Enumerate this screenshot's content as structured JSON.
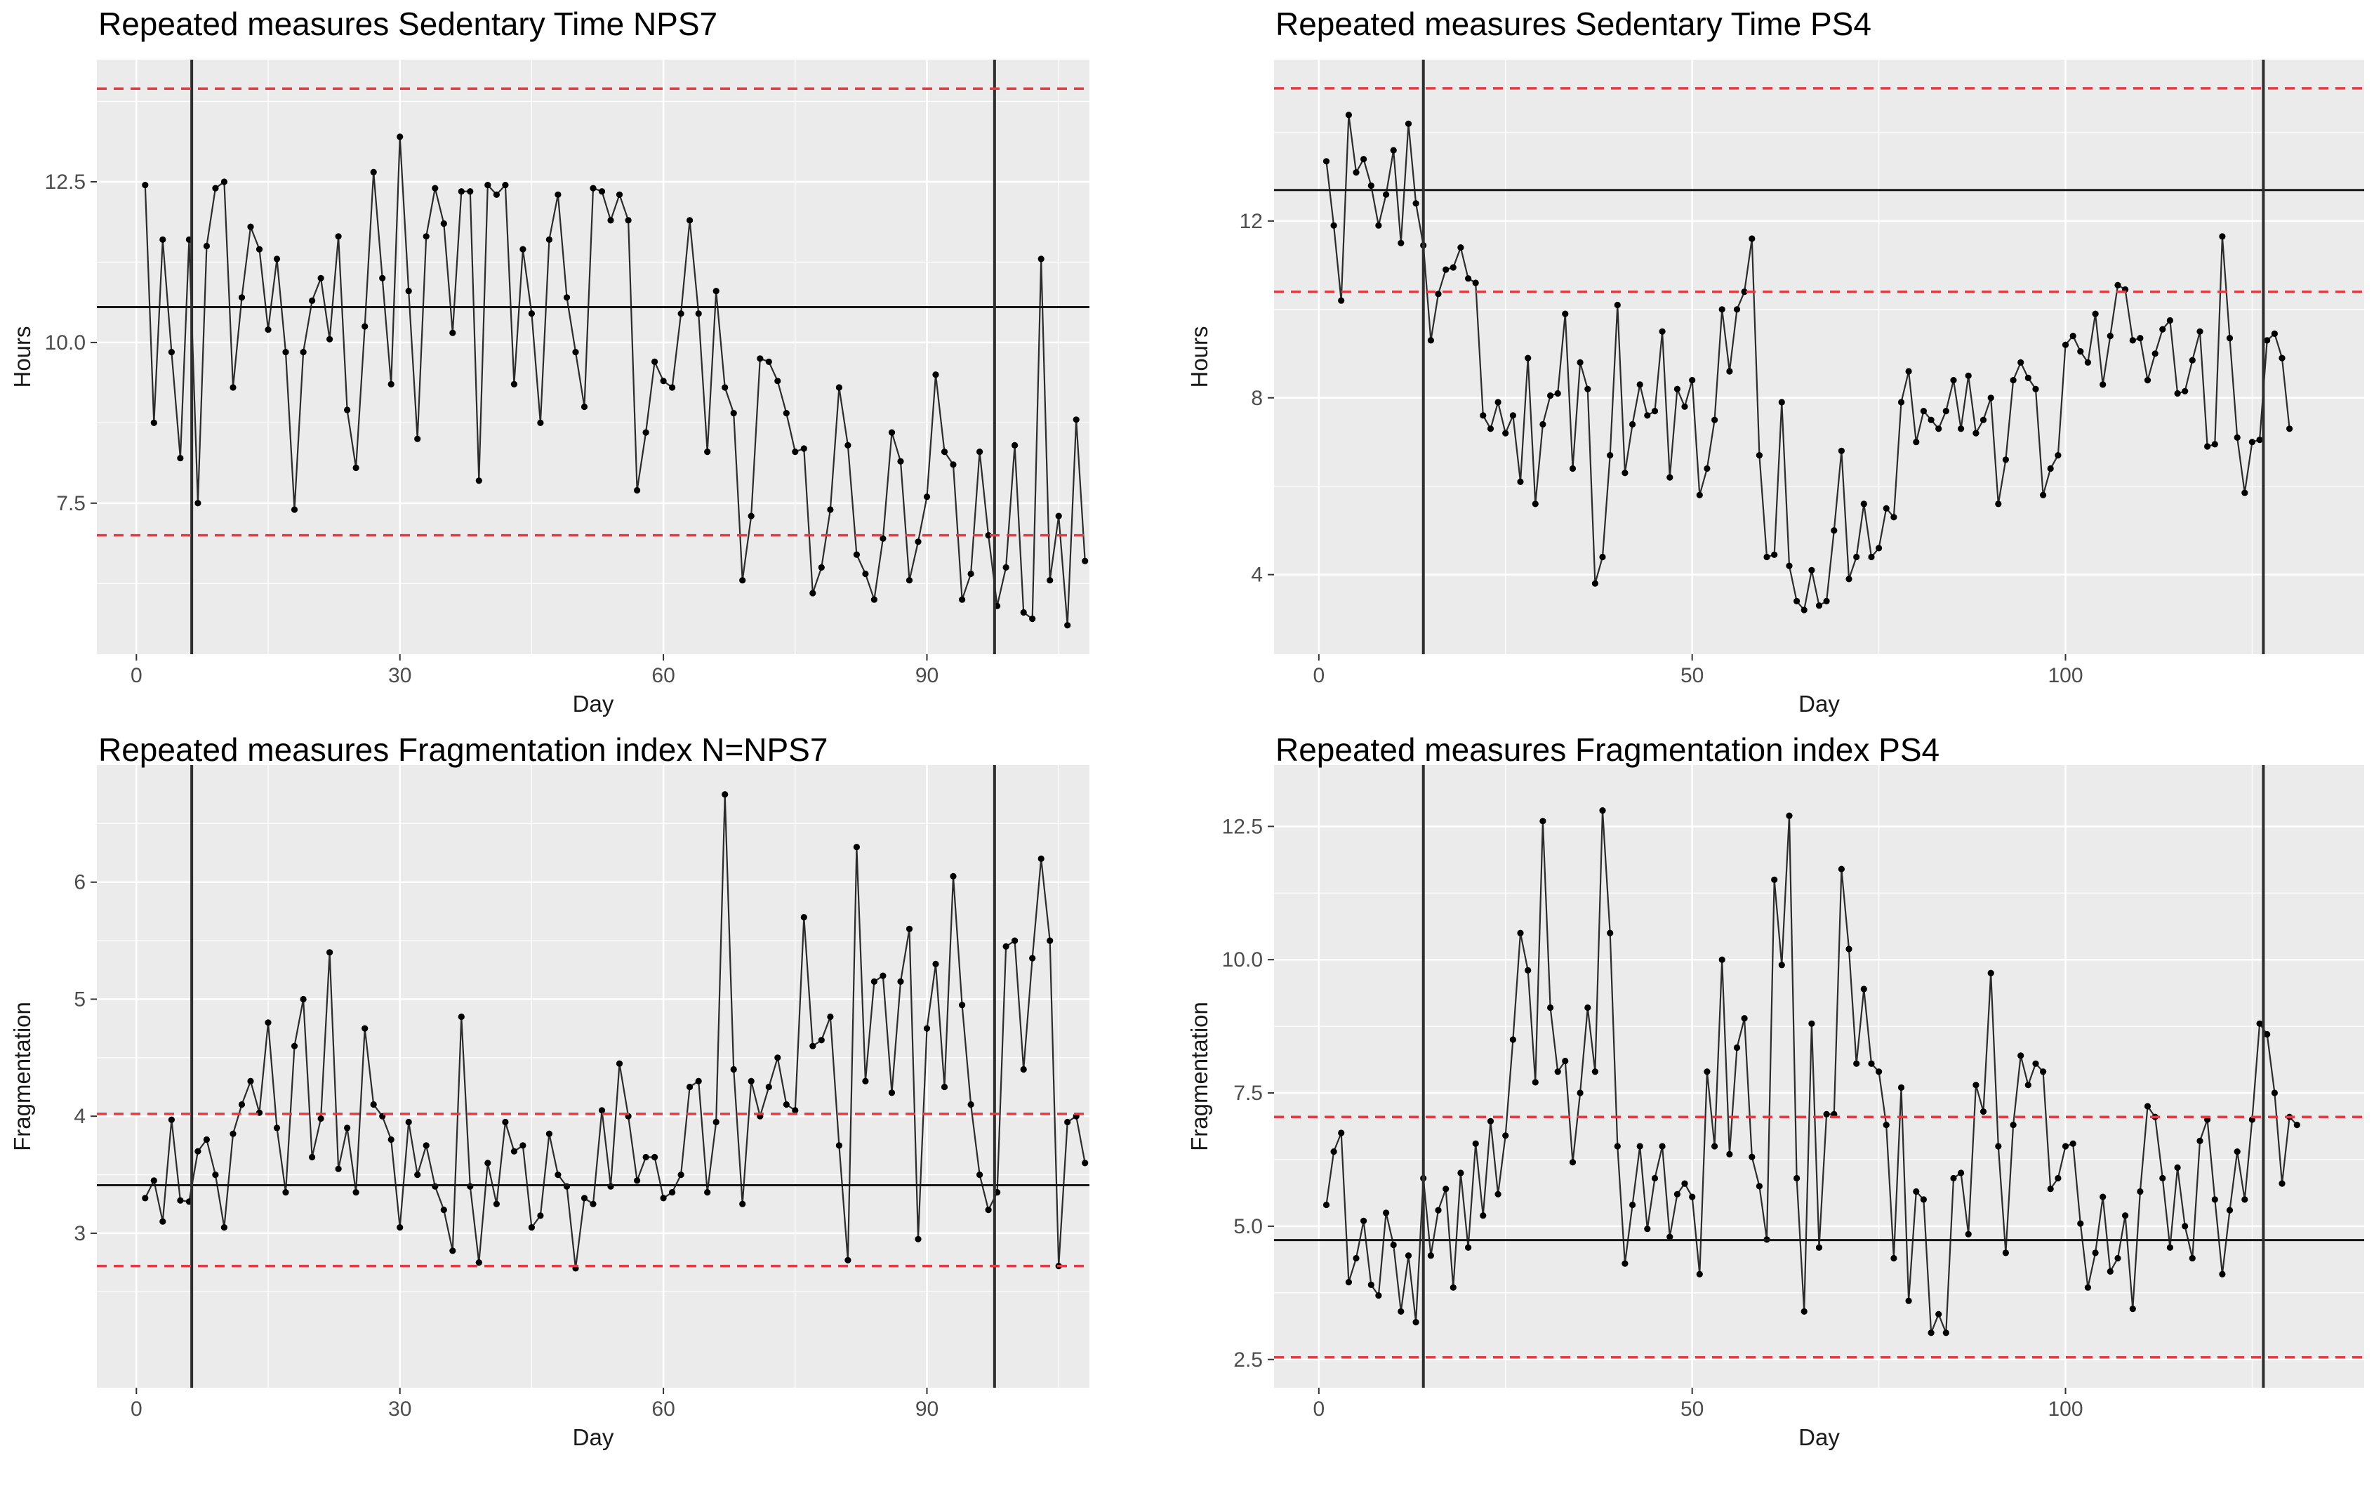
{
  "figure": {
    "description": "Four repeated-measures time series panels (ggplot style)",
    "background": "#ffffff"
  },
  "colors": {
    "panel_background": "#ebebeb",
    "grid_major": "#ffffff",
    "grid_minor": "#f7f7f7",
    "series_line": "#2b2b2b",
    "point": "#000000",
    "mean_line": "#161616",
    "phase_line": "#2e2e2e",
    "ref_line_red": "#e23b44",
    "tick_mark": "#333333",
    "tick_text": "#4d4d4d",
    "title_text": "#000000",
    "axis_title_text": "#1a1a1a"
  },
  "chart_data": [
    {
      "type": "line",
      "title": "Repeated measures Sedentary Time NPS7",
      "xlabel": "Day",
      "ylabel": "Hours",
      "x_ticks": [
        0,
        30,
        60,
        90
      ],
      "x_tick_labels": [
        "0",
        "30",
        "60",
        "90"
      ],
      "y_ticks": [
        7.5,
        10.0,
        12.5
      ],
      "y_tick_labels": [
        "7.5",
        "10.0",
        "12.5"
      ],
      "xlim": [
        -4.5,
        108.5
      ],
      "ylim": [
        5.15,
        14.4
      ],
      "grid": true,
      "legend": "none",
      "mean_line": 10.55,
      "ref_lines_red_dashed": [
        13.95,
        7.0
      ],
      "phase_change_lines": [
        6.3,
        97.7
      ],
      "x_start": 1,
      "x_step": 1,
      "values": [
        12.45,
        8.75,
        11.6,
        9.85,
        8.2,
        11.6,
        7.5,
        11.5,
        12.4,
        12.5,
        9.3,
        10.7,
        11.8,
        11.45,
        10.2,
        11.3,
        9.85,
        7.4,
        9.85,
        10.65,
        11.0,
        10.05,
        11.65,
        8.95,
        8.05,
        10.25,
        12.65,
        11.0,
        9.35,
        13.2,
        10.8,
        8.5,
        11.65,
        12.4,
        11.85,
        10.15,
        12.35,
        12.35,
        7.85,
        12.45,
        12.3,
        12.45,
        9.35,
        11.45,
        10.45,
        8.75,
        11.6,
        12.3,
        10.7,
        9.85,
        9.0,
        12.4,
        12.35,
        11.9,
        12.3,
        11.9,
        7.7,
        8.6,
        9.7,
        9.4,
        9.3,
        10.45,
        11.9,
        10.45,
        8.3,
        10.8,
        9.3,
        8.9,
        6.3,
        7.3,
        9.75,
        9.7,
        9.4,
        8.9,
        8.3,
        8.35,
        6.1,
        6.5,
        7.4,
        9.3,
        8.4,
        6.7,
        6.4,
        6.0,
        6.95,
        8.6,
        8.15,
        6.3,
        6.9,
        7.6,
        9.5,
        8.3,
        8.1,
        6.0,
        6.4,
        8.3,
        7.0,
        5.9,
        6.5,
        8.4,
        5.8,
        5.7,
        11.3,
        6.3,
        7.3,
        5.6,
        8.8,
        6.6
      ]
    },
    {
      "type": "line",
      "title": "Repeated measures Sedentary Time PS4",
      "xlabel": "Day",
      "ylabel": "Hours",
      "x_ticks": [
        0,
        50,
        100
      ],
      "x_tick_labels": [
        "0",
        "50",
        "100"
      ],
      "y_ticks": [
        4,
        8,
        12
      ],
      "y_tick_labels": [
        "4",
        "8",
        "12"
      ],
      "xlim": [
        -6,
        140
      ],
      "ylim": [
        2.2,
        15.65
      ],
      "grid": true,
      "legend": "none",
      "mean_line": 12.7,
      "ref_lines_red_dashed": [
        15.0,
        10.4
      ],
      "phase_change_lines": [
        14,
        126.5
      ],
      "x_start": 1,
      "x_step": 1,
      "values": [
        13.35,
        11.9,
        10.2,
        14.4,
        13.1,
        13.4,
        12.8,
        11.9,
        12.6,
        13.6,
        11.5,
        14.2,
        12.4,
        11.45,
        9.3,
        10.35,
        10.9,
        10.95,
        11.4,
        10.7,
        10.6,
        7.6,
        7.3,
        7.9,
        7.2,
        7.6,
        6.1,
        8.9,
        5.6,
        7.4,
        8.05,
        8.1,
        9.9,
        6.4,
        8.8,
        8.2,
        3.8,
        4.4,
        6.7,
        10.1,
        6.3,
        7.4,
        8.3,
        7.6,
        7.7,
        9.5,
        6.2,
        8.2,
        7.8,
        8.4,
        5.8,
        6.4,
        7.5,
        10.0,
        8.6,
        10.0,
        10.4,
        11.6,
        6.7,
        4.4,
        4.45,
        7.9,
        4.2,
        3.4,
        3.2,
        4.1,
        3.3,
        3.4,
        5.0,
        6.8,
        3.9,
        4.4,
        5.6,
        4.4,
        4.6,
        5.5,
        5.3,
        7.9,
        8.6,
        7.0,
        7.7,
        7.5,
        7.3,
        7.7,
        8.4,
        7.3,
        8.5,
        7.2,
        7.5,
        8.0,
        5.6,
        6.6,
        8.4,
        8.8,
        8.45,
        8.2,
        5.8,
        6.4,
        6.7,
        9.2,
        9.4,
        9.05,
        8.8,
        9.9,
        8.3,
        9.4,
        10.55,
        10.45,
        9.3,
        9.35,
        8.4,
        9.0,
        9.55,
        9.75,
        8.1,
        8.15,
        8.85,
        9.5,
        6.9,
        6.95,
        11.65,
        9.35,
        7.1,
        5.85,
        7.0,
        7.05,
        9.3,
        9.45,
        8.9,
        7.3
      ]
    },
    {
      "type": "line",
      "title": "Repeated measures Fragmentation index N=NPS7",
      "xlabel": "Day",
      "ylabel": "Fragmentation",
      "x_ticks": [
        0,
        30,
        60,
        90
      ],
      "x_tick_labels": [
        "0",
        "30",
        "60",
        "90"
      ],
      "y_ticks": [
        3,
        4,
        5,
        6
      ],
      "y_tick_labels": [
        "3",
        "4",
        "5",
        "6"
      ],
      "xlim": [
        -4.5,
        108.5
      ],
      "ylim": [
        1.68,
        7.0
      ],
      "grid": true,
      "legend": "none",
      "mean_line": 3.41,
      "ref_lines_red_dashed": [
        4.02,
        2.72
      ],
      "phase_change_lines": [
        6.3,
        97.7
      ],
      "x_start": 1,
      "x_step": 1,
      "values": [
        3.3,
        3.45,
        3.1,
        3.97,
        3.28,
        3.27,
        3.7,
        3.8,
        3.5,
        3.05,
        3.85,
        4.1,
        4.3,
        4.03,
        4.8,
        3.9,
        3.35,
        4.6,
        5.0,
        3.65,
        3.98,
        5.4,
        3.55,
        3.9,
        3.35,
        4.75,
        4.1,
        4.0,
        3.8,
        3.05,
        3.95,
        3.5,
        3.75,
        3.4,
        3.2,
        2.85,
        4.85,
        3.4,
        2.75,
        3.6,
        3.25,
        3.95,
        3.7,
        3.75,
        3.05,
        3.15,
        3.85,
        3.5,
        3.4,
        2.7,
        3.3,
        3.25,
        4.05,
        3.4,
        4.45,
        4.0,
        3.45,
        3.65,
        3.65,
        3.3,
        3.35,
        3.5,
        4.25,
        4.3,
        3.35,
        3.95,
        6.75,
        4.4,
        3.25,
        4.3,
        4.0,
        4.25,
        4.5,
        4.1,
        4.05,
        5.7,
        4.6,
        4.65,
        4.85,
        3.75,
        2.77,
        6.3,
        4.3,
        5.15,
        5.2,
        4.2,
        5.15,
        5.6,
        2.95,
        4.75,
        5.3,
        4.25,
        6.05,
        4.95,
        4.1,
        3.5,
        3.2,
        3.35,
        5.45,
        5.5,
        4.4,
        5.35,
        6.2,
        5.5,
        2.72,
        3.95,
        4.0,
        3.6
      ]
    },
    {
      "type": "line",
      "title": "Repeated measures Fragmentation index PS4",
      "xlabel": "Day",
      "ylabel": "Fragmentation",
      "x_ticks": [
        0,
        50,
        100
      ],
      "x_tick_labels": [
        "0",
        "50",
        "100"
      ],
      "y_ticks": [
        2.5,
        5.0,
        7.5,
        10.0,
        12.5
      ],
      "y_tick_labels": [
        "2.5",
        "5.0",
        "7.5",
        "10.0",
        "12.5"
      ],
      "xlim": [
        -6,
        140
      ],
      "ylim": [
        1.97,
        13.65
      ],
      "grid": true,
      "legend": "none",
      "mean_line": 4.74,
      "ref_lines_red_dashed": [
        7.05,
        2.54
      ],
      "phase_change_lines": [
        14,
        126.5
      ],
      "x_start": 1,
      "x_step": 1,
      "values": [
        5.4,
        6.4,
        6.75,
        3.95,
        4.4,
        5.1,
        3.9,
        3.7,
        5.25,
        4.65,
        3.4,
        4.45,
        3.2,
        5.9,
        4.45,
        5.3,
        5.7,
        3.85,
        6.0,
        4.6,
        6.55,
        5.2,
        6.97,
        5.6,
        6.7,
        8.5,
        10.5,
        9.8,
        7.7,
        12.6,
        9.1,
        7.9,
        8.1,
        6.2,
        7.5,
        9.1,
        7.9,
        12.8,
        10.5,
        6.5,
        4.3,
        5.4,
        6.5,
        4.95,
        5.9,
        6.5,
        4.8,
        5.6,
        5.8,
        5.55,
        4.1,
        7.9,
        6.5,
        10.0,
        6.35,
        8.35,
        8.9,
        6.3,
        5.75,
        4.75,
        11.5,
        9.9,
        12.7,
        5.9,
        3.4,
        8.8,
        4.6,
        7.1,
        7.1,
        11.7,
        10.2,
        8.05,
        9.45,
        8.05,
        7.9,
        6.9,
        4.4,
        7.6,
        3.6,
        5.65,
        5.5,
        3.0,
        3.35,
        3.0,
        5.9,
        6.0,
        4.85,
        7.65,
        7.15,
        9.75,
        6.5,
        4.5,
        6.9,
        8.2,
        7.65,
        8.05,
        7.9,
        5.7,
        5.9,
        6.5,
        6.55,
        5.05,
        3.85,
        4.5,
        5.55,
        4.15,
        4.4,
        5.2,
        3.45,
        5.65,
        7.25,
        7.05,
        5.9,
        4.6,
        6.1,
        5.0,
        4.4,
        6.6,
        7.0,
        5.5,
        4.1,
        5.3,
        6.4,
        5.5,
        7.0,
        8.8,
        8.6,
        7.5,
        5.8,
        7.05,
        6.9
      ]
    }
  ]
}
